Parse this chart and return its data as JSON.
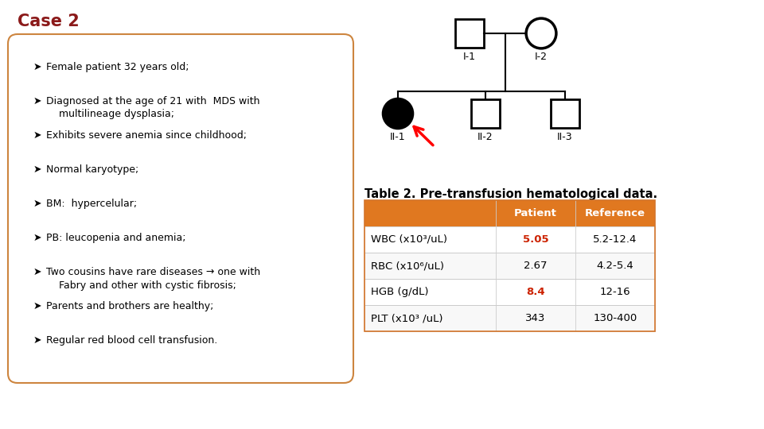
{
  "title": "Case 2",
  "title_color": "#8B1A1A",
  "bg_color": "#ffffff",
  "box_border_color": "#CD853F",
  "bullet_lines": [
    "Female patient 32 years old;",
    "Diagnosed at the age of 21 with  MDS with\n    multilineage dysplasia;",
    "Exhibits severe anemia since childhood;",
    "Normal karyotype;",
    "BM:  hypercelular;",
    "PB: leucopenia and anemia;",
    "Two cousins have rare diseases → one with\n    Fabry and other with cystic fibrosis;",
    "Parents and brothers are healthy;",
    "Regular red blood cell transfusion."
  ],
  "table_title": "Table 2. Pre-transfusion hematological data.",
  "table_header_bg": "#E07820",
  "table_rows": [
    [
      "WBC (x10³/uL)",
      "5.05",
      "5.2-12.4"
    ],
    [
      "RBC (x10⁶/uL)",
      "2.67",
      "4.2-5.4"
    ],
    [
      "HGB (g/dL)",
      "8.4",
      "12-16"
    ],
    [
      "PLT (x10³ /uL)",
      "343",
      "130-400"
    ]
  ],
  "table_patient_red": [
    true,
    false,
    true,
    false
  ]
}
